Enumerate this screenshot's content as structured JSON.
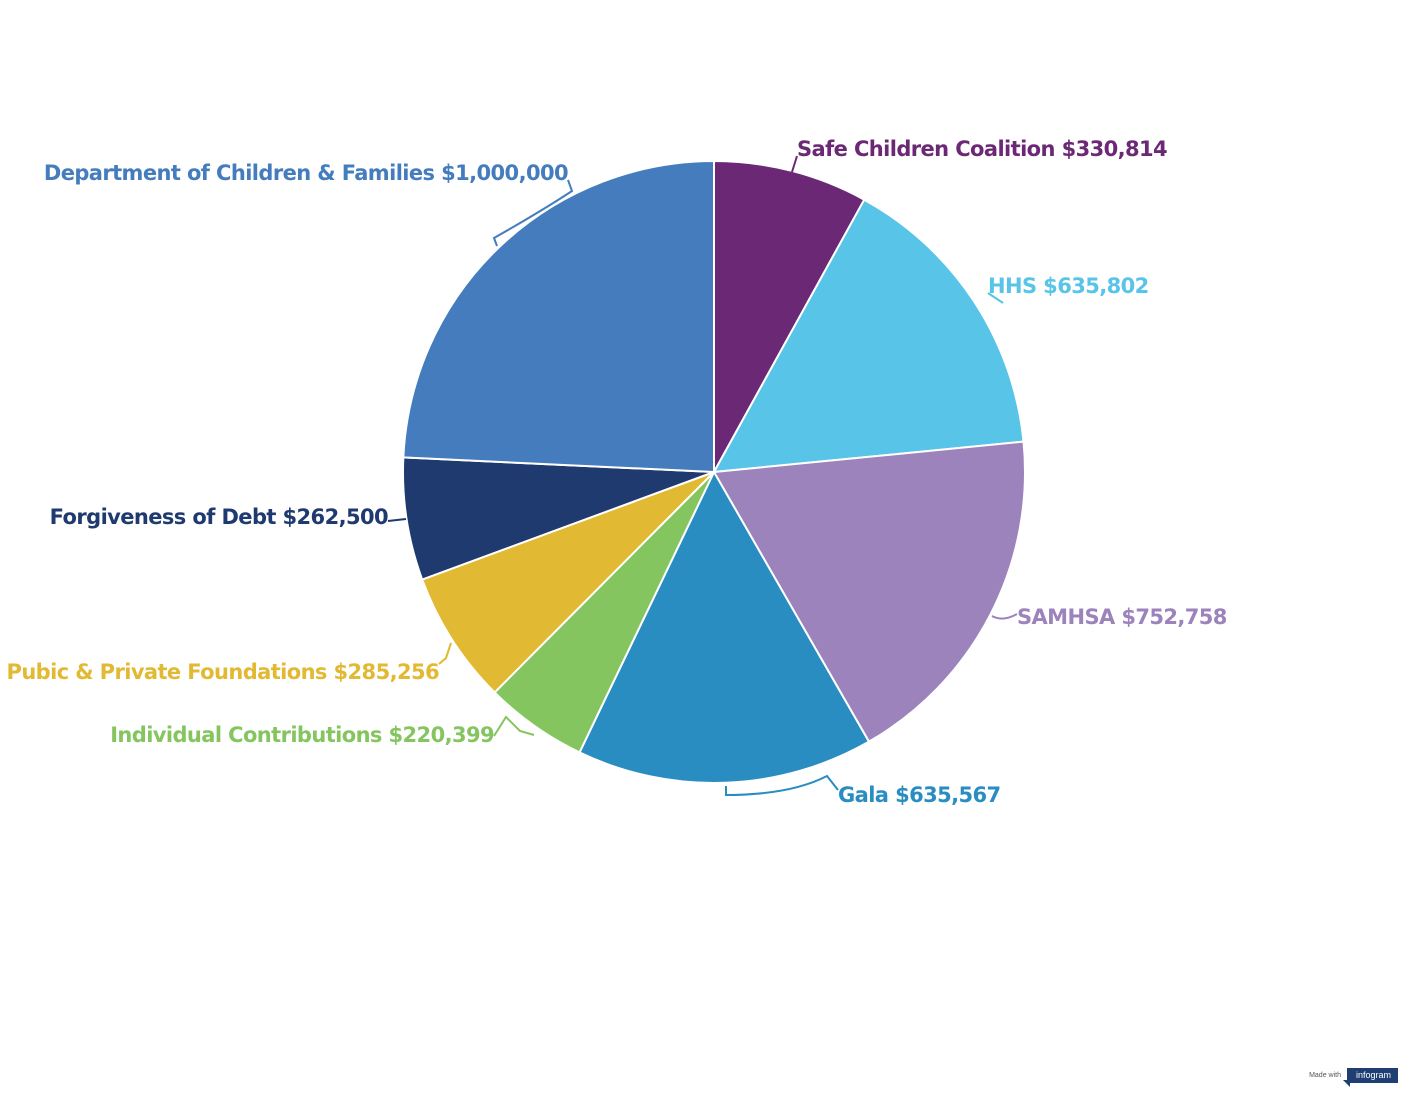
{
  "chart_data": {
    "type": "pie",
    "title": "",
    "slices": [
      {
        "label": "Safe Children Coalition $330,814",
        "name": "Safe Children Coalition",
        "value": 330814,
        "color": "#6b2874"
      },
      {
        "label": "HHS $635,802",
        "name": "HHS",
        "value": 635802,
        "color": "#57c4e8"
      },
      {
        "label": "SAMHSA $752,758",
        "name": "SAMHSA",
        "value": 752758,
        "color": "#9c83bc"
      },
      {
        "label": "Gala $635,567",
        "name": "Gala",
        "value": 635567,
        "color": "#298dc1"
      },
      {
        "label": "Individual Contributions $220,399",
        "name": "Individual Contributions",
        "value": 220399,
        "color": "#85c55f"
      },
      {
        "label": "Pubic & Private Foundations $285,256",
        "name": "Pubic & Private Foundations",
        "value": 285256,
        "color": "#e2b933"
      },
      {
        "label": "Forgiveness of Debt $262,500",
        "name": "Forgiveness of Debt",
        "value": 262500,
        "color": "#1f3a6f"
      },
      {
        "label": "Department of Children & Families $1,000,000",
        "name": "Department of Children & Families",
        "value": 1000000,
        "color": "#447cbd"
      }
    ],
    "start_angle": "12 o'clock",
    "direction": "clockwise",
    "legend": "none"
  },
  "footer": {
    "made_with": "Made with",
    "brand": "infogram"
  }
}
